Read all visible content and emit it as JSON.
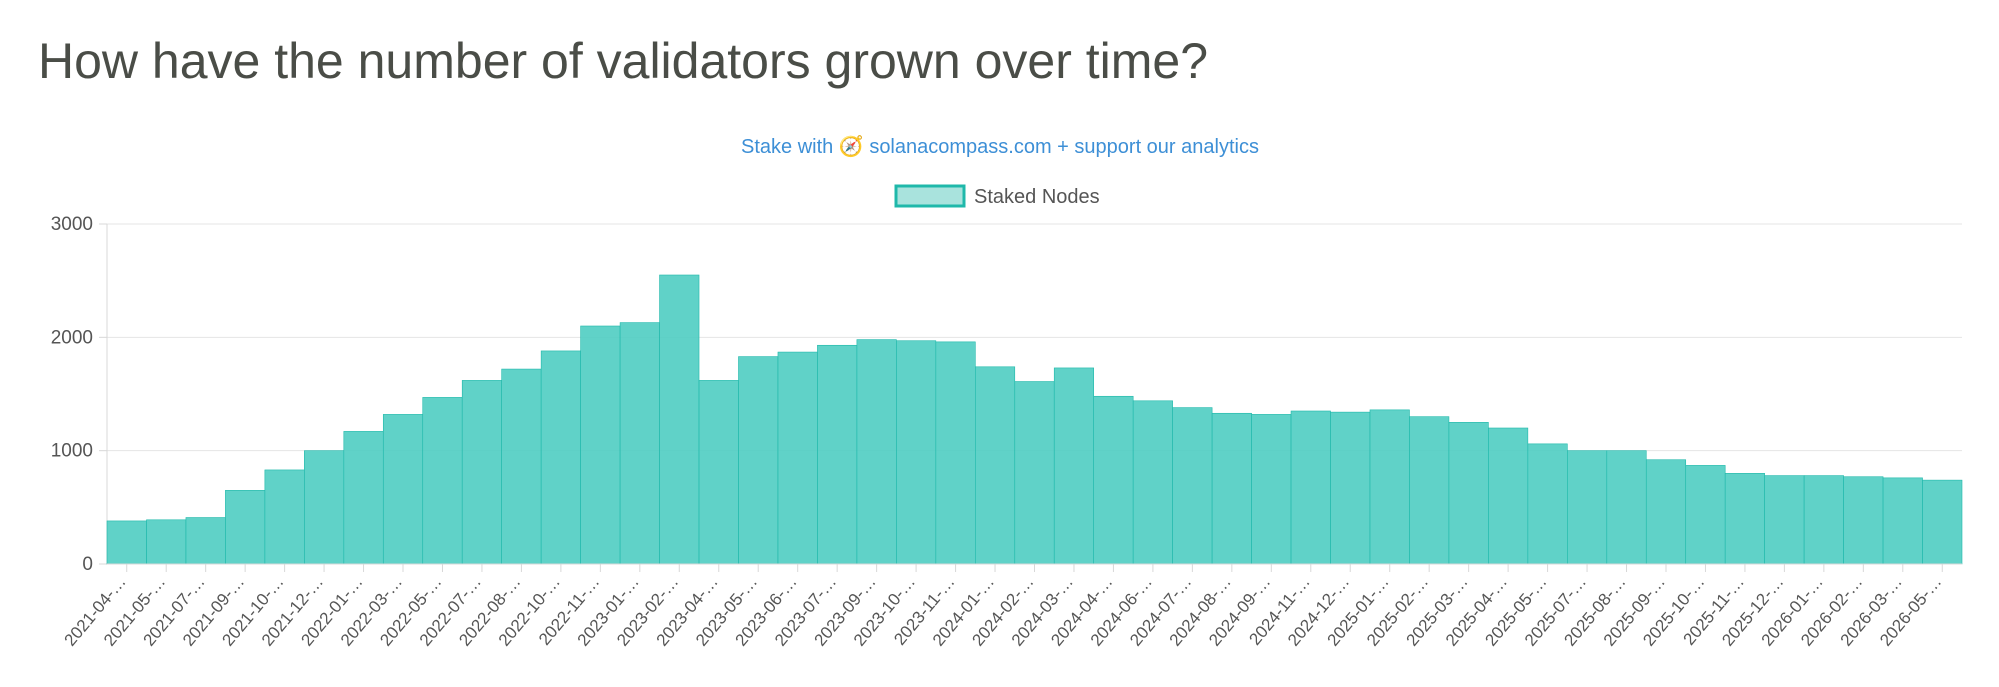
{
  "page": {
    "title": "How have the number of validators grown over time?"
  },
  "chart_data": {
    "type": "bar",
    "subtitle": "Stake with 🧭 solanacompass.com + support our analytics",
    "legend": {
      "position": "top",
      "entries": [
        "Staked Nodes"
      ]
    },
    "series": [
      {
        "name": "Staked Nodes",
        "color": "#4fcdc2",
        "border_color": "#1fb8aa"
      }
    ],
    "ylim": [
      0,
      3000
    ],
    "y_ticks": [
      0,
      1000,
      2000,
      3000
    ],
    "grid": true,
    "x_tick_labels": [
      "2021-04-…",
      "2021-05-…",
      "2021-07-…",
      "2021-09-…",
      "2021-10-…",
      "2021-12-…",
      "2022-01-…",
      "2022-03-…",
      "2022-05-…",
      "2022-07-…",
      "2022-08-…",
      "2022-10-…",
      "2022-11-…",
      "2023-01-…",
      "2023-02-…",
      "2023-04-…",
      "2023-05-…",
      "2023-06-…",
      "2023-07-…",
      "2023-09-…",
      "2023-10-…",
      "2023-11-…",
      "2024-01-…",
      "2024-02-…",
      "2024-03-…",
      "2024-04-…",
      "2024-06-…",
      "2024-07-…",
      "2024-08-…",
      "2024-09-…",
      "2024-11-…",
      "2024-12-…",
      "2025-01-…",
      "2025-02-…",
      "2025-03-…",
      "2025-04-…",
      "2025-05-…",
      "2025-07-…",
      "2025-08-…",
      "2025-09-…",
      "2025-10-…",
      "2025-11-…",
      "2025-12-…",
      "2026-01-…",
      "2026-02-…",
      "2026-03-…",
      "2026-05-…"
    ],
    "values_by_tick_interval": [
      380,
      390,
      410,
      650,
      830,
      1000,
      1170,
      1320,
      1470,
      1620,
      1720,
      1880,
      2100,
      2130,
      2550,
      1620,
      1830,
      1870,
      1930,
      1980,
      1970,
      1960,
      1740,
      1610,
      1730,
      1480,
      1440,
      1380,
      1330,
      1320,
      1350,
      1340,
      1360,
      1300,
      1250,
      1200,
      1060,
      1000,
      1000,
      920,
      870,
      800,
      780,
      780,
      770,
      760,
      740
    ]
  }
}
